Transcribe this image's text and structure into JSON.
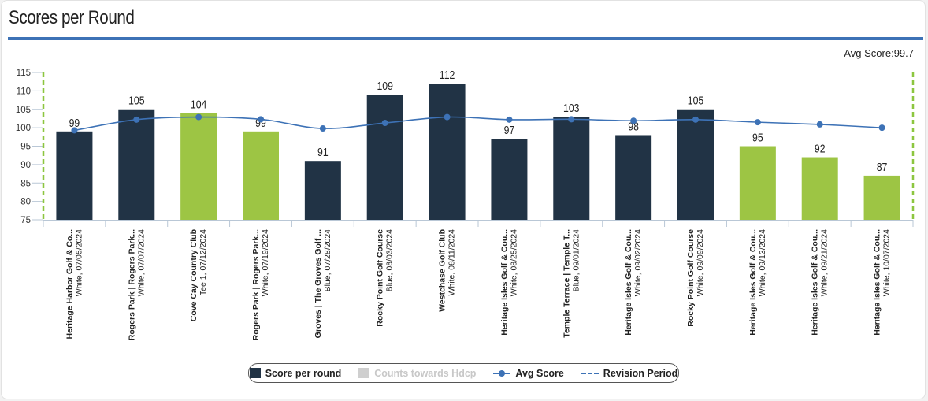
{
  "header": {
    "title": "Scores per Round",
    "avg_score_label": "Avg Score:99.7"
  },
  "colors": {
    "navy": "#213345",
    "green": "#9dc544",
    "avg_line": "#3d72b6",
    "revision": "#8cc63f",
    "title_rule": "#3d72b6"
  },
  "legend": {
    "score_per_round": "Score per round",
    "counts_towards_hdcp": "Counts towards Hdcp",
    "avg_score": "Avg Score",
    "revision_period": "Revision Period"
  },
  "chart_data": {
    "type": "bar",
    "ylim": [
      75,
      115
    ],
    "yticks": [
      75,
      80,
      85,
      90,
      95,
      100,
      105,
      110,
      115
    ],
    "grid": false,
    "legend_position": "bottom-center",
    "categories": [
      {
        "line1": "Heritage Harbor Golf & Co...",
        "line2": "White, 07/05/2024"
      },
      {
        "line1": "Rogers Park | Rogers Park...",
        "line2": "White, 07/07/2024"
      },
      {
        "line1": "Cove Cay Country Club",
        "line2": "Tee 1, 07/12/2024"
      },
      {
        "line1": "Rogers Park | Rogers Park...",
        "line2": "White, 07/19/2024"
      },
      {
        "line1": "Groves | The Groves Golf ...",
        "line2": "Blue, 07/28/2024"
      },
      {
        "line1": "Rocky Point Golf Course",
        "line2": "Blue, 08/03/2024"
      },
      {
        "line1": "Westchase Golf Club",
        "line2": "White, 08/11/2024"
      },
      {
        "line1": "Heritage Isles Golf & Cou...",
        "line2": "White, 08/25/2024"
      },
      {
        "line1": "Temple Terrace | Temple T...",
        "line2": "Blue, 09/01/2024"
      },
      {
        "line1": "Heritage Isles Golf & Cou...",
        "line2": "White, 09/02/2024"
      },
      {
        "line1": "Rocky Point Golf Course",
        "line2": "White, 09/09/2024"
      },
      {
        "line1": "Heritage Isles Golf & Cou...",
        "line2": "White, 09/13/2024"
      },
      {
        "line1": "Heritage Isles Golf & Cou...",
        "line2": "White, 09/21/2024"
      },
      {
        "line1": "Heritage Isles Golf & Cou...",
        "line2": "White, 10/07/2024"
      }
    ],
    "series": [
      {
        "name": "Score per round",
        "values": [
          99,
          105,
          104,
          99,
          91,
          109,
          112,
          97,
          103,
          98,
          105,
          95,
          92,
          87
        ],
        "counts_towards_hdcp": [
          false,
          false,
          true,
          true,
          false,
          false,
          false,
          false,
          false,
          false,
          false,
          true,
          true,
          true
        ]
      },
      {
        "name": "Avg Score",
        "values": [
          99.3,
          102.2,
          102.9,
          102.3,
          99.8,
          101.3,
          102.9,
          102.2,
          102.3,
          101.9,
          102.2,
          101.5,
          100.9,
          100.0
        ]
      }
    ],
    "revision_period": {
      "start_index": 0,
      "end_index": 13
    }
  }
}
